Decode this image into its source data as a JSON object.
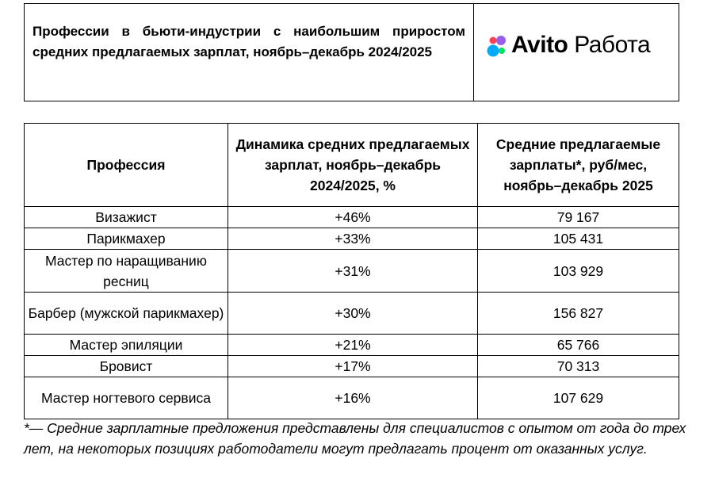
{
  "header": {
    "title": "Профессии в бьюти-индустрии с наибольшим приростом средних предлагаемых зарплат, ноябрь–декабрь 2024/2025",
    "logo_brand": "Avito",
    "logo_product": "Работа"
  },
  "table": {
    "columns": [
      "Профессия",
      "Динамика средних предлагаемых зарплат, ноябрь–декабрь 2024/2025, %",
      "Средние предлагаемые зарплаты*, руб/мес, ноябрь–декабрь 2025"
    ],
    "rows": [
      [
        "Визажист",
        "+46%",
        "79 167"
      ],
      [
        "Парикмахер",
        "+33%",
        "105 431"
      ],
      [
        "Мастер по наращиванию ресниц",
        "+31%",
        "103 929"
      ],
      [
        "Барбер (мужской парикмахер)",
        "+30%",
        "156 827"
      ],
      [
        "Мастер эпиляции",
        "+21%",
        "65 766"
      ],
      [
        "Бровист",
        "+17%",
        "70 313"
      ],
      [
        "Мастер ногтевого сервиса",
        "+16%",
        "107 629"
      ]
    ]
  },
  "footnote": "*— Средние зарплатные предложения представлены для специалистов с опытом от года до трех лет, на некоторых позициях работодатели могут предлагать процент от оказанных услуг."
}
